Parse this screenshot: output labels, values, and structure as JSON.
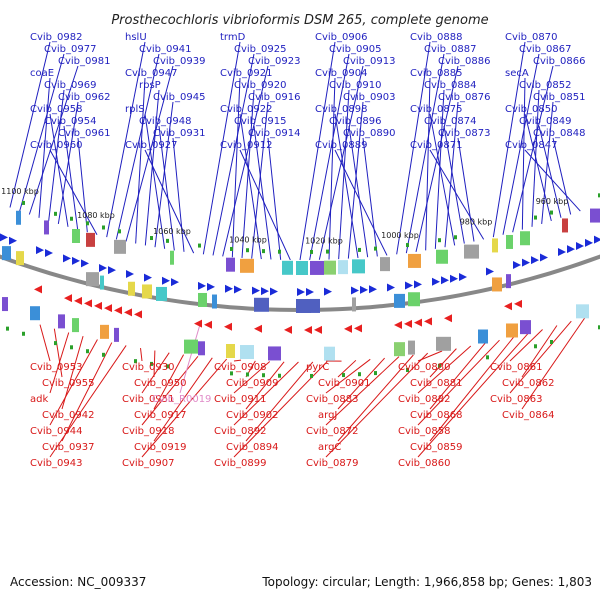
{
  "title": "Prosthecochloris vibrioformis DSM 265, complete genome",
  "footer": {
    "accession": "Accession: NC_009337",
    "summary": "Topology: circular; Length: 1,966,858 bp; Genes: 1,803"
  },
  "colors": {
    "top": "#1f1fbf",
    "bottom": "#d81818",
    "pink": "#e08bc8",
    "backbone": "#888888"
  },
  "ticks": [
    "1100 kbp",
    "1080 kbp",
    "1060 kbp",
    "1040 kbp",
    "1020 kbp",
    "1000 kbp",
    "980 kbp",
    "960 kbp"
  ],
  "top_labels": [
    "Cvib_0982",
    "Cvib_0977",
    "Cvib_0981",
    "coaE",
    "Cvib_0969",
    "Cvib_0962",
    "Cvib_0958",
    "Cvib_0954",
    "Cvib_0961",
    "Cvib_0960",
    "hslU",
    "Cvib_0941",
    "Cvib_0939",
    "Cvib_0947",
    "rpsP",
    "Cvib_0945",
    "rplS",
    "Cvib_0948",
    "Cvib_0931",
    "Cvib_0927",
    "trmD",
    "Cvib_0925",
    "Cvib_0923",
    "Cvib_0921",
    "Cvib_0920",
    "Cvib_0916",
    "Cvib_0922",
    "Cvib_0915",
    "Cvib_0914",
    "Cvib_0912",
    "Cvib_0906",
    "Cvib_0905",
    "Cvib_0913",
    "Cvib_0904",
    "Cvib_0910",
    "Cvib_0903",
    "Cvib_0898",
    "Cvib_0896",
    "Cvib_0890",
    "Cvib_0889",
    "Cvib_0888",
    "Cvib_0887",
    "Cvib_0886",
    "Cvib_0885",
    "Cvib_0884",
    "Cvib_0876",
    "Cvib_0875",
    "Cvib_0874",
    "Cvib_0873",
    "Cvib_0871",
    "Cvib_0870",
    "Cvib_0867",
    "Cvib_0866",
    "secA",
    "Cvib_0852",
    "Cvib_0851",
    "Cvib_0850",
    "Cvib_0849",
    "Cvib_0848",
    "Cvib_0847"
  ],
  "bottom_labels": [
    "Cvib_0953",
    "Cvib_0955",
    "adk",
    "Cvib_0942",
    "Cvib_0944",
    "Cvib_0937",
    "Cvib_0943",
    "Cvib_0930",
    "Cvib_0950",
    "Cvib_0951",
    "Cvib_0917",
    "Cvib_0918",
    "Cvib_0919",
    "Cvib_0907",
    "Cvib_0908",
    "Cvib_0909",
    "Cvib_0911",
    "Cvib_0902",
    "Cvib_0892",
    "Cvib_0894",
    "Cvib_0899",
    "pyrC",
    "Cvib_0901",
    "Cvib_0883",
    "argJ",
    "Cvib_0872",
    "argC",
    "Cvib_0879",
    "Cvib_0880",
    "Cvib_0881",
    "Cvib_0882",
    "Cvib_0868",
    "Cvib_0858",
    "Cvib_0859",
    "Cvib_0860",
    "Cvib_0861",
    "Cvib_0862",
    "Cvib_0863",
    "Cvib_0864"
  ],
  "pink_labels": [
    "Cvib_R0019"
  ]
}
